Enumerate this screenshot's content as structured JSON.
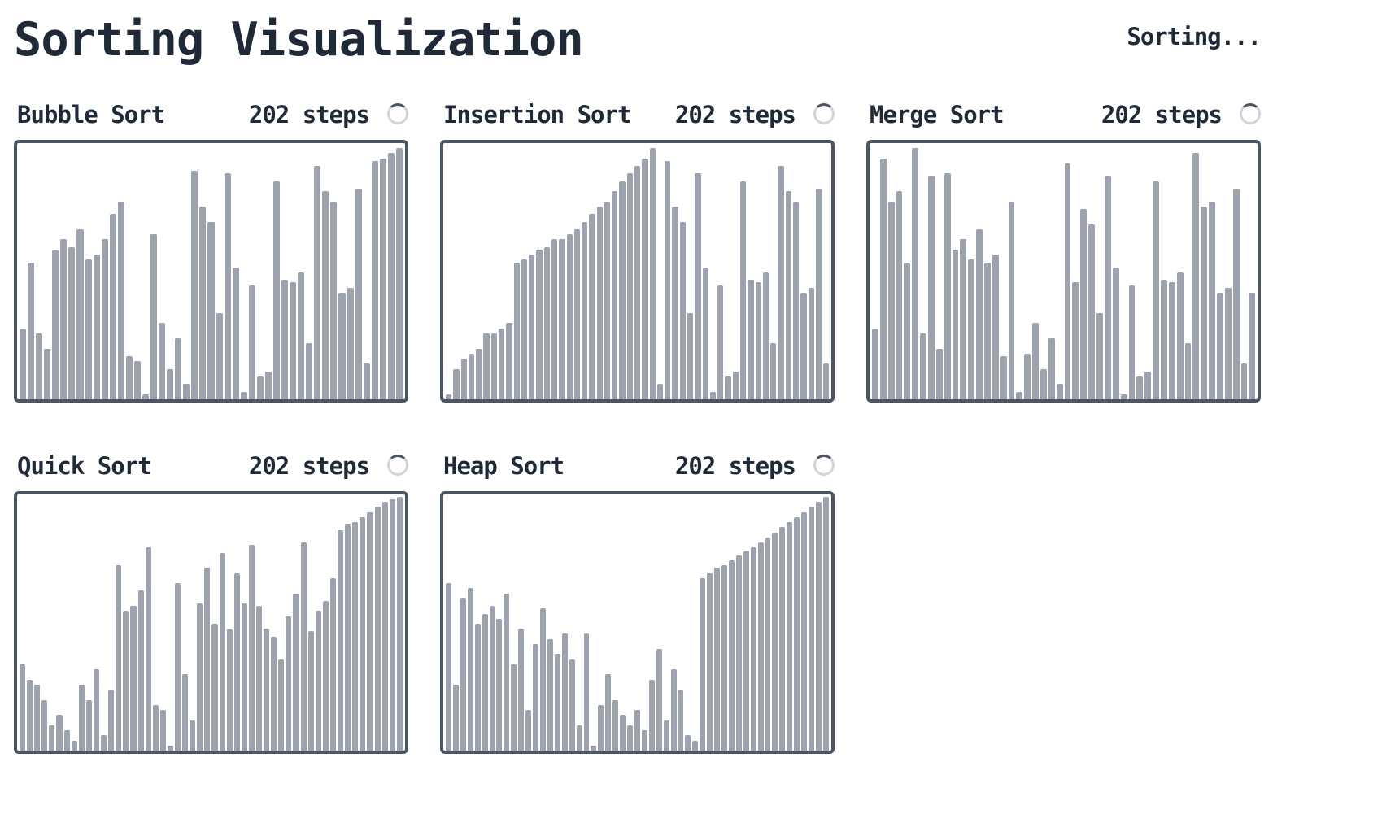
{
  "header": {
    "title": "Sorting Visualization",
    "status": "Sorting..."
  },
  "panels": [
    {
      "name": "Bubble Sort",
      "steps": "202 steps",
      "values": [
        28,
        54,
        26,
        20,
        59,
        63,
        60,
        67,
        55,
        57,
        63,
        73,
        78,
        17,
        15,
        2,
        65,
        30,
        12,
        24,
        6,
        90,
        76,
        70,
        34,
        89,
        52,
        3,
        45,
        9,
        11,
        86,
        47,
        46,
        50,
        22,
        92,
        82,
        78,
        42,
        44,
        83,
        14,
        94,
        95,
        97,
        99
      ]
    },
    {
      "name": "Insertion Sort",
      "steps": "202 steps",
      "values": [
        2,
        12,
        16,
        18,
        20,
        26,
        26,
        28,
        30,
        54,
        55,
        57,
        59,
        60,
        63,
        63,
        65,
        67,
        70,
        73,
        76,
        78,
        82,
        86,
        89,
        92,
        95,
        99,
        6,
        94,
        76,
        70,
        34,
        89,
        52,
        3,
        45,
        9,
        11,
        86,
        47,
        46,
        50,
        22,
        92,
        82,
        78,
        42,
        44,
        83,
        14
      ]
    },
    {
      "name": "Merge Sort",
      "steps": "202 steps",
      "values": [
        28,
        95,
        78,
        82,
        54,
        99,
        26,
        88,
        20,
        89,
        59,
        63,
        55,
        67,
        54,
        57,
        17,
        78,
        3,
        18,
        30,
        12,
        24,
        6,
        93,
        46,
        75,
        69,
        34,
        88,
        52,
        2,
        45,
        9,
        11,
        86,
        47,
        46,
        50,
        22,
        97,
        76,
        78,
        42,
        44,
        83,
        14,
        42
      ]
    },
    {
      "name": "Quick Sort",
      "steps": "202 steps",
      "values": [
        34,
        28,
        26,
        20,
        10,
        14,
        8,
        4,
        26,
        20,
        32,
        6,
        24,
        73,
        55,
        57,
        63,
        80,
        18,
        16,
        2,
        66,
        30,
        12,
        58,
        72,
        50,
        78,
        48,
        70,
        58,
        81,
        57,
        48,
        45,
        36,
        53,
        62,
        82,
        47,
        55,
        59,
        68,
        87,
        89,
        90,
        92,
        94,
        96,
        98,
        99,
        100
      ]
    },
    {
      "name": "Heap Sort",
      "steps": "202 steps",
      "values": [
        66,
        26,
        60,
        64,
        50,
        54,
        57,
        52,
        62,
        34,
        48,
        16,
        42,
        56,
        44,
        38,
        46,
        36,
        10,
        46,
        2,
        18,
        30,
        20,
        14,
        10,
        16,
        8,
        28,
        40,
        12,
        32,
        24,
        6,
        4,
        68,
        70,
        72,
        73,
        75,
        77,
        79,
        80,
        82,
        84,
        86,
        88,
        90,
        92,
        94,
        96,
        98,
        100
      ]
    }
  ],
  "colors": {
    "bar": "#9ca3af",
    "border": "#4b5563",
    "text": "#1f2937",
    "spinner": "#d1d5db"
  },
  "icons": {
    "spinner": "loading-spinner-icon"
  }
}
